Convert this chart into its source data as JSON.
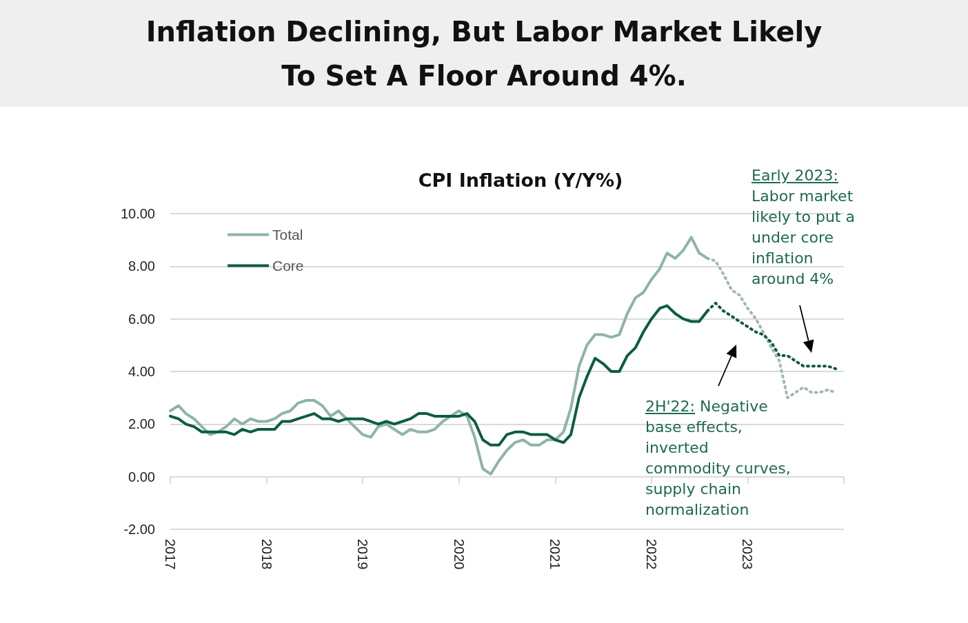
{
  "chart_data": {
    "type": "line",
    "title": "Inflation Declining, But Labor Market Likely To Set A Floor Around 4%.",
    "subtitle": "CPI Inflation (Y/Y%)",
    "x": [
      "2017-01",
      "2017-02",
      "2017-03",
      "2017-04",
      "2017-05",
      "2017-06",
      "2017-07",
      "2017-08",
      "2017-09",
      "2017-10",
      "2017-11",
      "2017-12",
      "2018-01",
      "2018-02",
      "2018-03",
      "2018-04",
      "2018-05",
      "2018-06",
      "2018-07",
      "2018-08",
      "2018-09",
      "2018-10",
      "2018-11",
      "2018-12",
      "2019-01",
      "2019-02",
      "2019-03",
      "2019-04",
      "2019-05",
      "2019-06",
      "2019-07",
      "2019-08",
      "2019-09",
      "2019-10",
      "2019-11",
      "2019-12",
      "2020-01",
      "2020-02",
      "2020-03",
      "2020-04",
      "2020-05",
      "2020-06",
      "2020-07",
      "2020-08",
      "2020-09",
      "2020-10",
      "2020-11",
      "2020-12",
      "2021-01",
      "2021-02",
      "2021-03",
      "2021-04",
      "2021-05",
      "2021-06",
      "2021-07",
      "2021-08",
      "2021-09",
      "2021-10",
      "2021-11",
      "2021-12",
      "2022-01",
      "2022-02",
      "2022-03",
      "2022-04",
      "2022-05",
      "2022-06",
      "2022-07",
      "2022-08"
    ],
    "series": [
      {
        "name": "Total",
        "color": "#8fb3a8",
        "values": [
          2.5,
          2.7,
          2.4,
          2.2,
          1.9,
          1.6,
          1.7,
          1.9,
          2.2,
          2.0,
          2.2,
          2.1,
          2.1,
          2.2,
          2.4,
          2.5,
          2.8,
          2.9,
          2.9,
          2.7,
          2.3,
          2.5,
          2.2,
          1.9,
          1.6,
          1.5,
          1.9,
          2.0,
          1.8,
          1.6,
          1.8,
          1.7,
          1.7,
          1.8,
          2.1,
          2.3,
          2.5,
          2.3,
          1.5,
          0.3,
          0.1,
          0.6,
          1.0,
          1.3,
          1.4,
          1.2,
          1.2,
          1.4,
          1.4,
          1.7,
          2.6,
          4.2,
          5.0,
          5.4,
          5.4,
          5.3,
          5.4,
          6.2,
          6.8,
          7.0,
          7.5,
          7.9,
          8.5,
          8.3,
          8.6,
          9.1,
          8.5,
          8.3
        ]
      },
      {
        "name": "Core",
        "color": "#0d5c45",
        "values": [
          2.3,
          2.2,
          2.0,
          1.9,
          1.7,
          1.7,
          1.7,
          1.7,
          1.6,
          1.8,
          1.7,
          1.8,
          1.8,
          1.8,
          2.1,
          2.1,
          2.2,
          2.3,
          2.4,
          2.2,
          2.2,
          2.1,
          2.2,
          2.2,
          2.2,
          2.1,
          2.0,
          2.1,
          2.0,
          2.1,
          2.2,
          2.4,
          2.4,
          2.3,
          2.3,
          2.3,
          2.3,
          2.4,
          2.1,
          1.4,
          1.2,
          1.2,
          1.6,
          1.7,
          1.7,
          1.6,
          1.6,
          1.6,
          1.4,
          1.3,
          1.6,
          3.0,
          3.8,
          4.5,
          4.3,
          4.0,
          4.0,
          4.6,
          4.9,
          5.5,
          6.0,
          6.4,
          6.5,
          6.2,
          6.0,
          5.9,
          5.9,
          6.3
        ]
      },
      {
        "color": "#a3b8b2",
        "line_style": "dotted",
        "x": [
          "2022-08",
          "2022-09",
          "2022-10",
          "2022-11",
          "2022-12",
          "2023-01",
          "2023-02",
          "2023-03",
          "2023-04",
          "2023-05",
          "2023-06",
          "2023-07",
          "2023-08",
          "2023-09",
          "2023-10",
          "2023-11",
          "2023-12"
        ],
        "values": [
          8.3,
          8.2,
          7.7,
          7.1,
          6.9,
          6.4,
          6.0,
          5.5,
          4.9,
          4.4,
          3.0,
          3.2,
          3.4,
          3.2,
          3.2,
          3.3,
          3.2
        ]
      },
      {
        "color": "#0d5c45",
        "line_style": "dotted",
        "x": [
          "2022-08",
          "2022-09",
          "2022-10",
          "2022-11",
          "2022-12",
          "2023-01",
          "2023-02",
          "2023-03",
          "2023-04",
          "2023-05",
          "2023-06",
          "2023-07",
          "2023-08",
          "2023-09",
          "2023-10",
          "2023-11",
          "2023-12"
        ],
        "values": [
          6.3,
          6.6,
          6.3,
          6.1,
          5.9,
          5.7,
          5.5,
          5.4,
          5.1,
          4.6,
          4.6,
          4.4,
          4.2,
          4.2,
          4.2,
          4.2,
          4.1
        ]
      }
    ],
    "xlim": [
      "2017-01",
      "2024-01"
    ],
    "xticks": [
      {
        "value": "2017",
        "label": "2017"
      },
      {
        "value": "2018",
        "label": "2018"
      },
      {
        "value": "2019",
        "label": "2019"
      },
      {
        "value": "2020",
        "label": "2020"
      },
      {
        "value": "2021",
        "label": "2021"
      },
      {
        "value": "2022",
        "label": "2022"
      },
      {
        "value": "2023",
        "label": "2023"
      },
      {
        "value": "2024",
        "label": null
      }
    ],
    "ylim": [
      -2,
      10
    ],
    "yticks": [
      {
        "value": -2,
        "label": "-2.00"
      },
      {
        "value": 0,
        "label": "0.00"
      },
      {
        "value": 2,
        "label": "2.00"
      },
      {
        "value": 4,
        "label": "4.00"
      },
      {
        "value": 6,
        "label": "6.00"
      },
      {
        "value": 8,
        "label": "8.00"
      },
      {
        "value": 10,
        "label": "10.00"
      }
    ],
    "grid": "y",
    "legend": "top left",
    "marker": "none",
    "line_style": "solid",
    "annotations": [
      "Early 2023: Labor market likely to put a under core inflation around 4%",
      "2H'22: Negative base effects, inverted commodity curves, supply chain normalization"
    ]
  }
}
